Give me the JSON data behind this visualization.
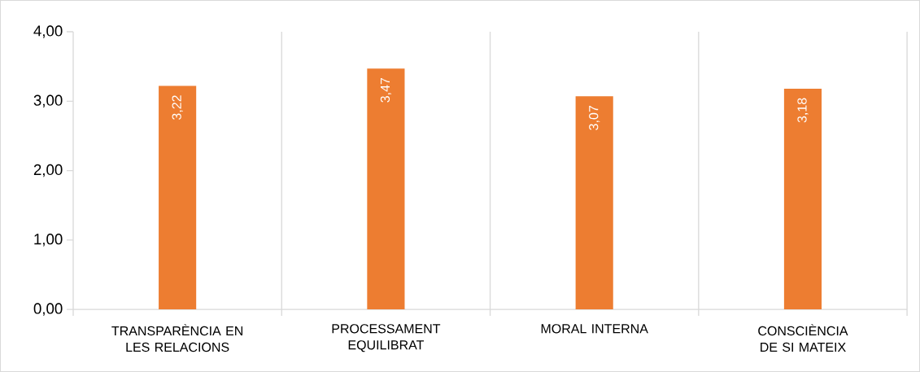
{
  "chart_data": {
    "type": "bar",
    "categories": [
      "TRANSPARÈNCIA EN LES RELACIONS",
      "PROCESSAMENT EQUILIBRAT",
      "MORAL INTERNA",
      "CONSCIÈNCIA DE SI MATEIX"
    ],
    "values": [
      3.22,
      3.47,
      3.07,
      3.18
    ],
    "value_labels": [
      "3,22",
      "3,47",
      "3,07",
      "3,18"
    ],
    "color": "#ed7d31",
    "ylim": [
      0,
      4
    ],
    "yticks": [
      {
        "value": 0,
        "label": "0,00"
      },
      {
        "value": 1,
        "label": "1,00"
      },
      {
        "value": 2,
        "label": "2,00"
      },
      {
        "value": 3,
        "label": "3,00"
      },
      {
        "value": 4,
        "label": "4,00"
      }
    ],
    "grid": "x"
  }
}
